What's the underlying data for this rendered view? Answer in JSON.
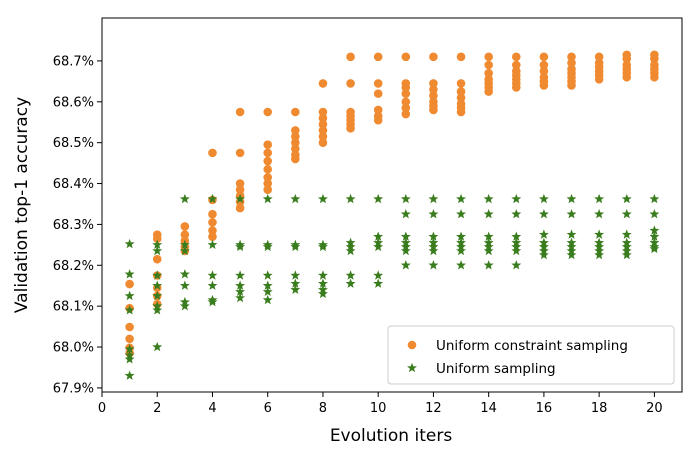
{
  "chart_data": {
    "type": "scatter",
    "title": "",
    "xlabel": "Evolution iters",
    "ylabel": "Validation top-1 accuracy",
    "xlim": [
      0,
      21
    ],
    "ylim": [
      67.89,
      68.805
    ],
    "xticks": [
      0,
      2,
      4,
      6,
      8,
      10,
      12,
      14,
      16,
      18,
      20
    ],
    "xtick_labels": [
      "0",
      "2",
      "4",
      "6",
      "8",
      "10",
      "12",
      "14",
      "16",
      "18",
      "20"
    ],
    "yticks": [
      67.9,
      68.0,
      68.1,
      68.2,
      68.3,
      68.4,
      68.5,
      68.6,
      68.7
    ],
    "ytick_labels": [
      "67.9%",
      "68.0%",
      "68.1%",
      "68.2%",
      "68.3%",
      "68.4%",
      "68.5%",
      "68.6%",
      "68.7%"
    ],
    "grid": false,
    "legend_position": "bottom-right",
    "series": [
      {
        "name": "Uniform constraint sampling",
        "marker": "circle",
        "color": "#f08a31",
        "points": [
          [
            1,
            68.154
          ],
          [
            1,
            68.095
          ],
          [
            1,
            68.049
          ],
          [
            1,
            68.02
          ],
          [
            1,
            67.998
          ],
          [
            1,
            67.985
          ],
          [
            2,
            68.275
          ],
          [
            2,
            68.265
          ],
          [
            2,
            68.215
          ],
          [
            2,
            68.175
          ],
          [
            2,
            68.145
          ],
          [
            2,
            68.125
          ],
          [
            2,
            68.105
          ],
          [
            3,
            68.295
          ],
          [
            3,
            68.275
          ],
          [
            3,
            68.26
          ],
          [
            3,
            68.245
          ],
          [
            3,
            68.235
          ],
          [
            4,
            68.475
          ],
          [
            4,
            68.36
          ],
          [
            4,
            68.325
          ],
          [
            4,
            68.305
          ],
          [
            4,
            68.285
          ],
          [
            4,
            68.27
          ],
          [
            5,
            68.575
          ],
          [
            5,
            68.475
          ],
          [
            5,
            68.4
          ],
          [
            5,
            68.385
          ],
          [
            5,
            68.37
          ],
          [
            5,
            68.355
          ],
          [
            5,
            68.34
          ],
          [
            6,
            68.575
          ],
          [
            6,
            68.495
          ],
          [
            6,
            68.475
          ],
          [
            6,
            68.455
          ],
          [
            6,
            68.435
          ],
          [
            6,
            68.415
          ],
          [
            6,
            68.4
          ],
          [
            6,
            68.385
          ],
          [
            7,
            68.575
          ],
          [
            7,
            68.53
          ],
          [
            7,
            68.515
          ],
          [
            7,
            68.5
          ],
          [
            7,
            68.485
          ],
          [
            7,
            68.47
          ],
          [
            7,
            68.46
          ],
          [
            8,
            68.645
          ],
          [
            8,
            68.575
          ],
          [
            8,
            68.56
          ],
          [
            8,
            68.545
          ],
          [
            8,
            68.53
          ],
          [
            8,
            68.515
          ],
          [
            8,
            68.5
          ],
          [
            9,
            68.71
          ],
          [
            9,
            68.645
          ],
          [
            9,
            68.575
          ],
          [
            9,
            68.565
          ],
          [
            9,
            68.555
          ],
          [
            9,
            68.545
          ],
          [
            9,
            68.535
          ],
          [
            10,
            68.71
          ],
          [
            10,
            68.645
          ],
          [
            10,
            68.62
          ],
          [
            10,
            68.58
          ],
          [
            10,
            68.565
          ],
          [
            10,
            68.555
          ],
          [
            11,
            68.71
          ],
          [
            11,
            68.645
          ],
          [
            11,
            68.635
          ],
          [
            11,
            68.62
          ],
          [
            11,
            68.6
          ],
          [
            11,
            68.585
          ],
          [
            11,
            68.57
          ],
          [
            12,
            68.71
          ],
          [
            12,
            68.645
          ],
          [
            12,
            68.63
          ],
          [
            12,
            68.615
          ],
          [
            12,
            68.6
          ],
          [
            12,
            68.59
          ],
          [
            12,
            68.58
          ],
          [
            13,
            68.71
          ],
          [
            13,
            68.645
          ],
          [
            13,
            68.625
          ],
          [
            13,
            68.61
          ],
          [
            13,
            68.595
          ],
          [
            13,
            68.585
          ],
          [
            13,
            68.575
          ],
          [
            14,
            68.71
          ],
          [
            14,
            68.69
          ],
          [
            14,
            68.67
          ],
          [
            14,
            68.655
          ],
          [
            14,
            68.645
          ],
          [
            14,
            68.635
          ],
          [
            14,
            68.625
          ],
          [
            15,
            68.71
          ],
          [
            15,
            68.69
          ],
          [
            15,
            68.675
          ],
          [
            15,
            68.665
          ],
          [
            15,
            68.655
          ],
          [
            15,
            68.645
          ],
          [
            15,
            68.635
          ],
          [
            16,
            68.71
          ],
          [
            16,
            68.69
          ],
          [
            16,
            68.675
          ],
          [
            16,
            68.66
          ],
          [
            16,
            68.65
          ],
          [
            16,
            68.64
          ],
          [
            17,
            68.71
          ],
          [
            17,
            68.695
          ],
          [
            17,
            68.68
          ],
          [
            17,
            68.67
          ],
          [
            17,
            68.66
          ],
          [
            17,
            68.65
          ],
          [
            17,
            68.64
          ],
          [
            18,
            68.71
          ],
          [
            18,
            68.695
          ],
          [
            18,
            68.685
          ],
          [
            18,
            68.675
          ],
          [
            18,
            68.665
          ],
          [
            18,
            68.655
          ],
          [
            19,
            68.715
          ],
          [
            19,
            68.705
          ],
          [
            19,
            68.69
          ],
          [
            19,
            68.68
          ],
          [
            19,
            68.67
          ],
          [
            19,
            68.66
          ],
          [
            20,
            68.715
          ],
          [
            20,
            68.705
          ],
          [
            20,
            68.69
          ],
          [
            20,
            68.68
          ],
          [
            20,
            68.67
          ],
          [
            20,
            68.66
          ]
        ]
      },
      {
        "name": "Uniform sampling",
        "marker": "star",
        "color": "#3a7d1e",
        "points": [
          [
            1,
            68.252
          ],
          [
            1,
            68.178
          ],
          [
            1,
            68.125
          ],
          [
            1,
            68.09
          ],
          [
            1,
            67.995
          ],
          [
            1,
            67.98
          ],
          [
            1,
            67.97
          ],
          [
            1,
            67.93
          ],
          [
            2,
            68.25
          ],
          [
            2,
            68.235
          ],
          [
            2,
            68.175
          ],
          [
            2,
            68.15
          ],
          [
            2,
            68.125
          ],
          [
            2,
            68.1
          ],
          [
            2,
            68.09
          ],
          [
            2,
            68.0
          ],
          [
            3,
            68.362
          ],
          [
            3,
            68.25
          ],
          [
            3,
            68.235
          ],
          [
            3,
            68.178
          ],
          [
            3,
            68.15
          ],
          [
            3,
            68.11
          ],
          [
            3,
            68.1
          ],
          [
            4,
            68.362
          ],
          [
            4,
            68.25
          ],
          [
            4,
            68.175
          ],
          [
            4,
            68.15
          ],
          [
            4,
            68.115
          ],
          [
            4,
            68.11
          ],
          [
            5,
            68.362
          ],
          [
            5,
            68.25
          ],
          [
            5,
            68.245
          ],
          [
            5,
            68.175
          ],
          [
            5,
            68.15
          ],
          [
            5,
            68.135
          ],
          [
            5,
            68.12
          ],
          [
            6,
            68.362
          ],
          [
            6,
            68.25
          ],
          [
            6,
            68.245
          ],
          [
            6,
            68.175
          ],
          [
            6,
            68.15
          ],
          [
            6,
            68.135
          ],
          [
            6,
            68.115
          ],
          [
            7,
            68.362
          ],
          [
            7,
            68.25
          ],
          [
            7,
            68.245
          ],
          [
            7,
            68.175
          ],
          [
            7,
            68.155
          ],
          [
            7,
            68.14
          ],
          [
            8,
            68.362
          ],
          [
            8,
            68.25
          ],
          [
            8,
            68.245
          ],
          [
            8,
            68.175
          ],
          [
            8,
            68.155
          ],
          [
            8,
            68.14
          ],
          [
            8,
            68.13
          ],
          [
            9,
            68.362
          ],
          [
            9,
            68.255
          ],
          [
            9,
            68.245
          ],
          [
            9,
            68.235
          ],
          [
            9,
            68.175
          ],
          [
            9,
            68.155
          ],
          [
            10,
            68.362
          ],
          [
            10,
            68.27
          ],
          [
            10,
            68.255
          ],
          [
            10,
            68.245
          ],
          [
            10,
            68.175
          ],
          [
            10,
            68.155
          ],
          [
            11,
            68.362
          ],
          [
            11,
            68.325
          ],
          [
            11,
            68.27
          ],
          [
            11,
            68.255
          ],
          [
            11,
            68.245
          ],
          [
            11,
            68.235
          ],
          [
            11,
            68.2
          ],
          [
            12,
            68.362
          ],
          [
            12,
            68.325
          ],
          [
            12,
            68.27
          ],
          [
            12,
            68.255
          ],
          [
            12,
            68.245
          ],
          [
            12,
            68.235
          ],
          [
            12,
            68.2
          ],
          [
            13,
            68.362
          ],
          [
            13,
            68.325
          ],
          [
            13,
            68.27
          ],
          [
            13,
            68.255
          ],
          [
            13,
            68.245
          ],
          [
            13,
            68.235
          ],
          [
            13,
            68.2
          ],
          [
            14,
            68.362
          ],
          [
            14,
            68.325
          ],
          [
            14,
            68.27
          ],
          [
            14,
            68.255
          ],
          [
            14,
            68.245
          ],
          [
            14,
            68.235
          ],
          [
            14,
            68.2
          ],
          [
            15,
            68.362
          ],
          [
            15,
            68.325
          ],
          [
            15,
            68.27
          ],
          [
            15,
            68.255
          ],
          [
            15,
            68.245
          ],
          [
            15,
            68.235
          ],
          [
            15,
            68.2
          ],
          [
            16,
            68.362
          ],
          [
            16,
            68.325
          ],
          [
            16,
            68.275
          ],
          [
            16,
            68.255
          ],
          [
            16,
            68.245
          ],
          [
            16,
            68.235
          ],
          [
            16,
            68.225
          ],
          [
            17,
            68.362
          ],
          [
            17,
            68.325
          ],
          [
            17,
            68.275
          ],
          [
            17,
            68.255
          ],
          [
            17,
            68.245
          ],
          [
            17,
            68.235
          ],
          [
            17,
            68.225
          ],
          [
            18,
            68.362
          ],
          [
            18,
            68.325
          ],
          [
            18,
            68.275
          ],
          [
            18,
            68.255
          ],
          [
            18,
            68.245
          ],
          [
            18,
            68.235
          ],
          [
            18,
            68.225
          ],
          [
            19,
            68.362
          ],
          [
            19,
            68.325
          ],
          [
            19,
            68.275
          ],
          [
            19,
            68.255
          ],
          [
            19,
            68.245
          ],
          [
            19,
            68.235
          ],
          [
            19,
            68.225
          ],
          [
            20,
            68.362
          ],
          [
            20,
            68.325
          ],
          [
            20,
            68.285
          ],
          [
            20,
            68.27
          ],
          [
            20,
            68.255
          ],
          [
            20,
            68.245
          ],
          [
            20,
            68.24
          ]
        ]
      }
    ]
  }
}
